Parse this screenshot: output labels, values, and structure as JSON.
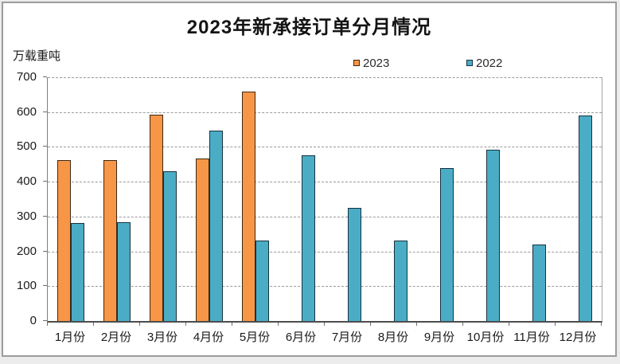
{
  "chart": {
    "title": "2023年新承接订单分月情况",
    "unit_label": "万载重吨"
  },
  "chart_data": {
    "type": "bar",
    "title": "2023年新承接订单分月情况",
    "xlabel": "",
    "ylabel": "万载重吨",
    "ylim": [
      0,
      700
    ],
    "ytick_step": 100,
    "grid": "horizontal-dashed",
    "legend_position": "top-center",
    "categories": [
      "1月份",
      "2月份",
      "3月份",
      "4月份",
      "5月份",
      "6月份",
      "7月份",
      "8月份",
      "9月份",
      "10月份",
      "11月份",
      "12月份"
    ],
    "series": [
      {
        "name": "2023",
        "color": "#F79646",
        "border_color": "#3a2a17",
        "values": [
          462,
          463,
          593,
          467,
          658,
          null,
          null,
          null,
          null,
          null,
          null,
          null
        ]
      },
      {
        "name": "2022",
        "color": "#4BACC6",
        "border_color": "#16323e",
        "values": [
          281,
          283,
          429,
          546,
          231,
          476,
          325,
          232,
          440,
          493,
          220,
          591
        ]
      }
    ]
  }
}
